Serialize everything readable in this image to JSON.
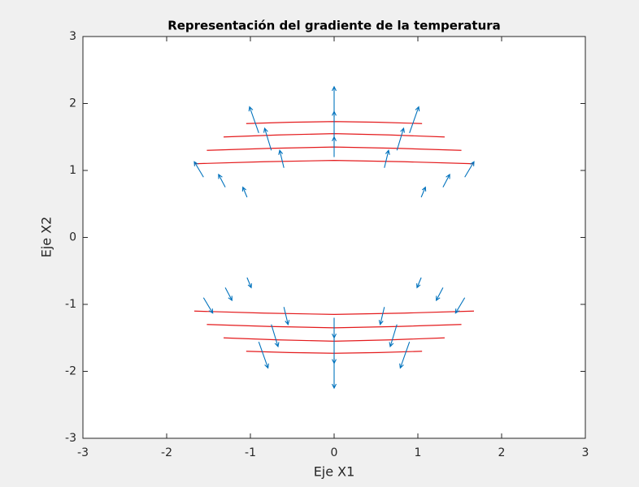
{
  "chart_data": {
    "type": "quiver",
    "title": "Representación del gradiente de la temperatura",
    "xlabel": "Eje X1",
    "ylabel": "Eje X2",
    "xlim": [
      -3,
      3
    ],
    "ylim": [
      -3,
      3
    ],
    "xticks": [
      -3,
      -2,
      -1,
      0,
      1,
      2,
      3
    ],
    "yticks": [
      -3,
      -2,
      -1,
      0,
      1,
      2,
      3
    ],
    "quiver": {
      "color": "#0072bd",
      "x": [
        1.2,
        1.04,
        0.6,
        0,
        -0.6,
        -1.04,
        -1.2,
        -1.04,
        -0.6,
        0,
        0.6,
        1.04,
        1.5,
        1.3,
        0.75,
        0,
        -0.75,
        -1.3,
        -1.5,
        -1.3,
        -0.75,
        0,
        0.75,
        1.3,
        1.8,
        1.56,
        0.9,
        0,
        -0.9,
        -1.56,
        -1.8,
        -1.56,
        -0.9,
        0,
        0.9,
        1.56
      ],
      "y": [
        0,
        0.6,
        1.04,
        1.2,
        1.04,
        0.6,
        0,
        -0.6,
        -1.04,
        -1.2,
        -1.04,
        -0.6,
        0,
        0.75,
        1.3,
        1.5,
        1.3,
        0.75,
        0,
        -0.75,
        -1.3,
        -1.5,
        -1.3,
        -0.75,
        0,
        0.9,
        1.56,
        1.8,
        1.56,
        0.9,
        0,
        -0.9,
        -1.56,
        -1.8,
        -1.56,
        -0.9
      ],
      "u": [
        0,
        0.05,
        0.05,
        0,
        -0.05,
        -0.05,
        0,
        0.05,
        0.05,
        0,
        -0.05,
        -0.05,
        0,
        0.08,
        0.08,
        0,
        -0.08,
        -0.08,
        0,
        0.08,
        0.08,
        0,
        -0.08,
        -0.08,
        0,
        0.11,
        0.11,
        0,
        -0.11,
        -0.11,
        0,
        0.11,
        0.11,
        0,
        -0.11,
        -0.11
      ],
      "v": [
        0,
        0.15,
        0.26,
        0.3,
        0.26,
        0.15,
        0,
        -0.15,
        -0.26,
        -0.3,
        -0.26,
        -0.15,
        0,
        0.19,
        0.33,
        0.38,
        0.33,
        0.19,
        0,
        -0.19,
        -0.33,
        -0.38,
        -0.33,
        -0.19,
        0,
        0.23,
        0.39,
        0.45,
        0.39,
        0.23,
        0,
        -0.23,
        -0.39,
        -0.45,
        -0.39,
        -0.23
      ]
    },
    "contour_color": "#e41a1c",
    "contours": [
      {
        "x": [
          -1.67,
          -0.84,
          0,
          0.84,
          1.67
        ],
        "y": [
          1.1,
          1.13,
          1.15,
          1.13,
          1.1
        ]
      },
      {
        "x": [
          -1.52,
          -0.76,
          0,
          0.76,
          1.52
        ],
        "y": [
          1.3,
          1.33,
          1.35,
          1.33,
          1.3
        ]
      },
      {
        "x": [
          -1.32,
          -0.66,
          0,
          0.66,
          1.32
        ],
        "y": [
          1.5,
          1.53,
          1.55,
          1.53,
          1.5
        ]
      },
      {
        "x": [
          -1.05,
          -0.53,
          0,
          0.53,
          1.05
        ],
        "y": [
          1.7,
          1.72,
          1.73,
          1.72,
          1.7
        ]
      },
      {
        "x": [
          -1.67,
          -0.84,
          0,
          0.84,
          1.67
        ],
        "y": [
          -1.1,
          -1.13,
          -1.15,
          -1.13,
          -1.1
        ]
      },
      {
        "x": [
          -1.52,
          -0.76,
          0,
          0.76,
          1.52
        ],
        "y": [
          -1.3,
          -1.33,
          -1.35,
          -1.33,
          -1.3
        ]
      },
      {
        "x": [
          -1.32,
          -0.66,
          0,
          0.66,
          1.32
        ],
        "y": [
          -1.5,
          -1.53,
          -1.55,
          -1.53,
          -1.5
        ]
      },
      {
        "x": [
          -1.05,
          -0.53,
          0,
          0.53,
          1.05
        ],
        "y": [
          -1.7,
          -1.72,
          -1.73,
          -1.72,
          -1.7
        ]
      }
    ]
  }
}
